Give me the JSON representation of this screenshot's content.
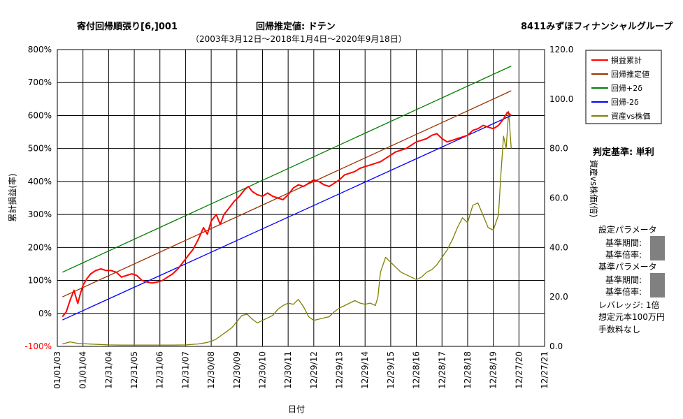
{
  "chart_data": {
    "type": "line",
    "title": "寄付回帰順張り[6,]001",
    "estimate_label": "回帰推定値: ドテン",
    "stock_name": "8411みずほフィナンシャルグループ",
    "subtitle": "（2003年3月12日～2018年1月4日～2020年9月18日）",
    "xlabel": "日付",
    "ylabel": "累計損益(率)",
    "y2label": "資産vs株価(倍)",
    "x_ticks": [
      "01/01/03",
      "01/01/04",
      "12/31/04",
      "12/31/05",
      "12/31/06",
      "12/31/07",
      "12/30/08",
      "12/30/09",
      "12/30/10",
      "12/30/11",
      "12/29/12",
      "12/29/13",
      "12/29/14",
      "12/29/15",
      "12/28/16",
      "12/28/17",
      "12/28/18",
      "12/28/19",
      "12/27/20",
      "12/27/21"
    ],
    "x_range_years": [
      2003.0,
      2022.0
    ],
    "y_ticks": [
      "-100%",
      "0%",
      "100%",
      "200%",
      "300%",
      "400%",
      "500%",
      "600%",
      "700%",
      "800%"
    ],
    "ylim": [
      -100,
      800
    ],
    "y2_ticks": [
      "0.0",
      "20.0",
      "40.0",
      "60.0",
      "80.0",
      "100.0",
      "120.0"
    ],
    "y2lim": [
      0,
      120
    ],
    "grid": true,
    "legend_position": "top-right",
    "legend": [
      {
        "name": "損益累計",
        "color": "#ff0000"
      },
      {
        "name": "回帰推定値",
        "color": "#993300"
      },
      {
        "name": "回帰+2δ",
        "color": "#008000"
      },
      {
        "name": "回帰-2δ",
        "color": "#0000ff"
      },
      {
        "name": "資産vs株価",
        "color": "#808000"
      }
    ],
    "series": [
      {
        "name": "回帰推定値",
        "axis": "left",
        "color": "#993300",
        "points": [
          [
            2003.2,
            50
          ],
          [
            2020.7,
            675
          ]
        ]
      },
      {
        "name": "回帰+2δ",
        "axis": "left",
        "color": "#008000",
        "points": [
          [
            2003.2,
            125
          ],
          [
            2020.7,
            750
          ]
        ]
      },
      {
        "name": "回帰-2δ",
        "axis": "left",
        "color": "#0000ff",
        "points": [
          [
            2003.2,
            -20
          ],
          [
            2020.7,
            600
          ]
        ]
      },
      {
        "name": "損益累計",
        "axis": "left",
        "color": "#ff0000",
        "points": [
          [
            2003.2,
            -10
          ],
          [
            2003.35,
            5
          ],
          [
            2003.5,
            40
          ],
          [
            2003.65,
            70
          ],
          [
            2003.8,
            30
          ],
          [
            2003.9,
            60
          ],
          [
            2004.0,
            85
          ],
          [
            2004.15,
            105
          ],
          [
            2004.3,
            120
          ],
          [
            2004.5,
            130
          ],
          [
            2004.7,
            135
          ],
          [
            2004.9,
            130
          ],
          [
            2005.1,
            130
          ],
          [
            2005.3,
            125
          ],
          [
            2005.5,
            110
          ],
          [
            2005.7,
            115
          ],
          [
            2005.9,
            120
          ],
          [
            2006.1,
            115
          ],
          [
            2006.3,
            100
          ],
          [
            2006.5,
            95
          ],
          [
            2006.7,
            92
          ],
          [
            2006.9,
            95
          ],
          [
            2007.1,
            100
          ],
          [
            2007.3,
            110
          ],
          [
            2007.5,
            120
          ],
          [
            2007.7,
            135
          ],
          [
            2007.9,
            155
          ],
          [
            2008.1,
            175
          ],
          [
            2008.3,
            195
          ],
          [
            2008.5,
            225
          ],
          [
            2008.7,
            260
          ],
          [
            2008.85,
            240
          ],
          [
            2009.0,
            280
          ],
          [
            2009.2,
            300
          ],
          [
            2009.35,
            270
          ],
          [
            2009.5,
            300
          ],
          [
            2009.7,
            320
          ],
          [
            2009.9,
            340
          ],
          [
            2010.1,
            355
          ],
          [
            2010.3,
            375
          ],
          [
            2010.45,
            385
          ],
          [
            2010.6,
            370
          ],
          [
            2010.8,
            360
          ],
          [
            2011.0,
            355
          ],
          [
            2011.2,
            365
          ],
          [
            2011.4,
            355
          ],
          [
            2011.6,
            350
          ],
          [
            2011.8,
            345
          ],
          [
            2012.0,
            360
          ],
          [
            2012.2,
            380
          ],
          [
            2012.4,
            390
          ],
          [
            2012.6,
            385
          ],
          [
            2012.8,
            395
          ],
          [
            2013.0,
            405
          ],
          [
            2013.2,
            400
          ],
          [
            2013.4,
            390
          ],
          [
            2013.6,
            385
          ],
          [
            2013.8,
            395
          ],
          [
            2014.0,
            405
          ],
          [
            2014.2,
            420
          ],
          [
            2014.4,
            425
          ],
          [
            2014.6,
            430
          ],
          [
            2014.8,
            440
          ],
          [
            2015.0,
            445
          ],
          [
            2015.2,
            450
          ],
          [
            2015.4,
            455
          ],
          [
            2015.6,
            460
          ],
          [
            2015.8,
            470
          ],
          [
            2016.0,
            480
          ],
          [
            2016.2,
            490
          ],
          [
            2016.4,
            495
          ],
          [
            2016.6,
            500
          ],
          [
            2016.8,
            510
          ],
          [
            2017.0,
            520
          ],
          [
            2017.2,
            525
          ],
          [
            2017.4,
            530
          ],
          [
            2017.6,
            540
          ],
          [
            2017.8,
            545
          ],
          [
            2018.0,
            530
          ],
          [
            2018.2,
            520
          ],
          [
            2018.4,
            525
          ],
          [
            2018.6,
            530
          ],
          [
            2018.8,
            535
          ],
          [
            2019.0,
            540
          ],
          [
            2019.2,
            555
          ],
          [
            2019.4,
            560
          ],
          [
            2019.6,
            570
          ],
          [
            2019.8,
            565
          ],
          [
            2020.0,
            560
          ],
          [
            2020.2,
            570
          ],
          [
            2020.4,
            590
          ],
          [
            2020.55,
            610
          ],
          [
            2020.7,
            600
          ]
        ]
      },
      {
        "name": "資産vs株価",
        "axis": "right",
        "color": "#808000",
        "points": [
          [
            2003.2,
            1.0
          ],
          [
            2003.5,
            1.8
          ],
          [
            2003.8,
            1.2
          ],
          [
            2004.2,
            1.0
          ],
          [
            2004.6,
            0.8
          ],
          [
            2005.0,
            0.6
          ],
          [
            2005.5,
            0.5
          ],
          [
            2006.0,
            0.5
          ],
          [
            2006.5,
            0.5
          ],
          [
            2007.0,
            0.5
          ],
          [
            2007.5,
            0.5
          ],
          [
            2008.0,
            0.6
          ],
          [
            2008.5,
            1.0
          ],
          [
            2008.8,
            1.5
          ],
          [
            2009.0,
            2.0
          ],
          [
            2009.2,
            3.0
          ],
          [
            2009.4,
            4.5
          ],
          [
            2009.6,
            6.0
          ],
          [
            2009.8,
            7.5
          ],
          [
            2010.0,
            10.0
          ],
          [
            2010.2,
            12.5
          ],
          [
            2010.4,
            13.0
          ],
          [
            2010.6,
            11.0
          ],
          [
            2010.8,
            9.5
          ],
          [
            2011.0,
            10.5
          ],
          [
            2011.2,
            11.5
          ],
          [
            2011.4,
            12.5
          ],
          [
            2011.6,
            15.0
          ],
          [
            2011.8,
            16.5
          ],
          [
            2012.0,
            17.5
          ],
          [
            2012.2,
            17.0
          ],
          [
            2012.4,
            19.0
          ],
          [
            2012.6,
            16.0
          ],
          [
            2012.8,
            12.0
          ],
          [
            2013.0,
            10.5
          ],
          [
            2013.2,
            11.0
          ],
          [
            2013.4,
            11.5
          ],
          [
            2013.6,
            12.0
          ],
          [
            2013.8,
            14.0
          ],
          [
            2014.0,
            15.5
          ],
          [
            2014.2,
            16.5
          ],
          [
            2014.4,
            17.5
          ],
          [
            2014.6,
            18.5
          ],
          [
            2014.8,
            17.5
          ],
          [
            2015.0,
            17.0
          ],
          [
            2015.2,
            17.5
          ],
          [
            2015.4,
            16.5
          ],
          [
            2015.5,
            20.0
          ],
          [
            2015.6,
            30.0
          ],
          [
            2015.8,
            36.0
          ],
          [
            2016.0,
            34.0
          ],
          [
            2016.2,
            32.0
          ],
          [
            2016.4,
            30.0
          ],
          [
            2016.6,
            29.0
          ],
          [
            2016.8,
            28.0
          ],
          [
            2017.0,
            27.0
          ],
          [
            2017.2,
            28.0
          ],
          [
            2017.4,
            30.0
          ],
          [
            2017.6,
            31.0
          ],
          [
            2017.8,
            33.0
          ],
          [
            2018.0,
            36.0
          ],
          [
            2018.2,
            39.0
          ],
          [
            2018.4,
            43.0
          ],
          [
            2018.6,
            48.0
          ],
          [
            2018.8,
            52.0
          ],
          [
            2019.0,
            50.0
          ],
          [
            2019.2,
            57.0
          ],
          [
            2019.4,
            58.0
          ],
          [
            2019.6,
            53.0
          ],
          [
            2019.8,
            48.0
          ],
          [
            2020.0,
            47.0
          ],
          [
            2020.1,
            50.0
          ],
          [
            2020.2,
            53.0
          ],
          [
            2020.3,
            70.0
          ],
          [
            2020.4,
            85.0
          ],
          [
            2020.5,
            80.0
          ],
          [
            2020.6,
            95.0
          ],
          [
            2020.7,
            80.0
          ]
        ]
      }
    ]
  }
}
